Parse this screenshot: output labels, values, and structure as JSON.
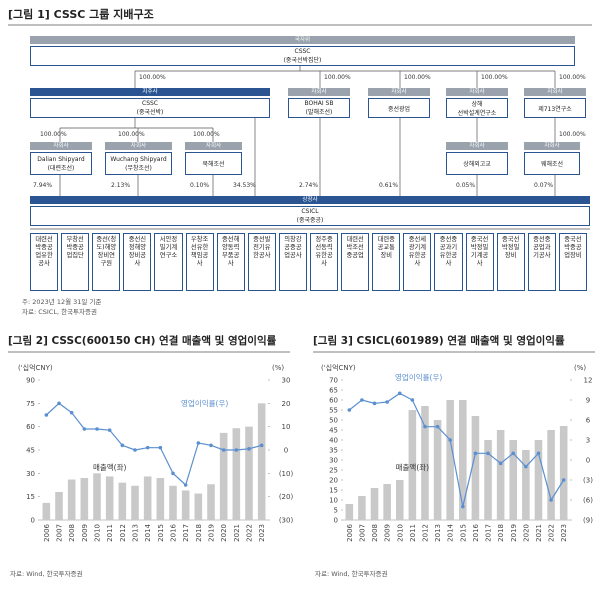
{
  "diagram": {
    "title": "[그림 1] CSSC 그룹 지배구조",
    "nodes": [
      {
        "tag": "국자위",
        "lines": [
          "CSSC",
          "(중국선박집단)"
        ]
      },
      {
        "tag": "지주사",
        "lines": [
          "CSSC",
          "(중국선박)"
        ]
      },
      {
        "tag": "자회사",
        "lines": [
          "BOHAI SB",
          "(발해조선)"
        ]
      },
      {
        "tag": "자회사",
        "lines": [
          "중선광업"
        ]
      },
      {
        "tag": "자회사",
        "lines": [
          "상해",
          "선박설계연구소"
        ]
      },
      {
        "tag": "자회사",
        "lines": [
          "제713연구소"
        ]
      },
      {
        "tag": "자회사",
        "lines": [
          "Dalian Shipyard",
          "(대련조선)"
        ]
      },
      {
        "tag": "자회사",
        "lines": [
          "Wuchang Shipyard",
          "(무창조선)"
        ]
      },
      {
        "tag": "자회사",
        "lines": [
          "북해조선"
        ]
      },
      {
        "tag": "자회사",
        "lines": [
          "상해외고교"
        ]
      },
      {
        "tag": "자회사",
        "lines": [
          "웨해조선"
        ]
      },
      {
        "tag": "상장사",
        "lines": [
          "CSICL",
          "(중국중공)"
        ]
      }
    ],
    "edges": [
      "100.00%",
      "100.00%",
      "100.00%",
      "100.00%",
      "100.00%",
      "100.00%",
      "100.00%",
      "100.00%",
      "100.00%",
      "7.94%",
      "2.13%",
      "0.10%",
      "34.53%",
      "2.74%",
      "0.61%",
      "0.05%",
      "0.07%"
    ],
    "subsidiaries": [
      "대련선박중공업유한공사",
      "무창선박중공업집단",
      "중선(청도)해양장비연구원",
      "중선신정해양장비공사",
      "서안정밀기계연구소",
      "우창조선유한책임공사",
      "중선해양동력부품공사",
      "중선발전기유한공사",
      "의창강공중공업공사",
      "정주중선동력유한공사",
      "대련선박조선중공업",
      "대련중공교통장비",
      "중선세광기계유한공사",
      "중선중공과기유한공사",
      "중국선박정밀기계공사",
      "중국선박정밀장비",
      "중선중공업과기공사",
      "중국선박중공업장비"
    ],
    "note": "주: 2023년 12월 31일 기준",
    "source": "자료: CSICL, 한국투자증권"
  },
  "chart_data": [
    {
      "type": "bar",
      "title": "[그림 2] CSSC(600150 CH) 연결 매출액 및 영업이익률",
      "y_label": "('십억CNY)",
      "y2_label": "(%)",
      "categories": [
        "2006",
        "2007",
        "2008",
        "2009",
        "2010",
        "2011",
        "2012",
        "2013",
        "2014",
        "2015",
        "2016",
        "2017",
        "2018",
        "2019",
        "2020",
        "2021",
        "2022",
        "2023"
      ],
      "series": [
        {
          "name": "매출액(좌)",
          "type": "bar",
          "color": "#c9c9c9",
          "values": [
            11,
            18,
            26,
            27,
            30,
            28,
            24,
            22,
            28,
            27,
            22,
            19,
            17,
            23,
            56,
            59,
            60,
            75
          ]
        },
        {
          "name": "영업이익률(우)",
          "type": "line",
          "axis": "y2",
          "color": "#5b8fd0",
          "values": [
            15,
            20,
            16,
            9,
            9,
            8.5,
            2,
            0,
            1,
            1,
            -10,
            -15,
            3,
            2,
            0,
            0,
            0.5,
            2
          ]
        }
      ],
      "ylim": [
        0,
        90
      ],
      "yticks": [
        0,
        15,
        30,
        45,
        60,
        75,
        90
      ],
      "y2lim": [
        -30,
        30
      ],
      "y2ticks": [
        {
          "value": -30,
          "label": "(30)"
        },
        {
          "value": -20,
          "label": "(20)"
        },
        {
          "value": -10,
          "label": "(10)"
        },
        0,
        10,
        20,
        30
      ],
      "source": "자료: Wind, 한국투자증권"
    },
    {
      "type": "bar",
      "title": "[그림 3] CSICL(601989) 연결 매출액 및 영업이익률",
      "y_label": "('십억CNY)",
      "y2_label": "(%)",
      "categories": [
        "2006",
        "2007",
        "2008",
        "2009",
        "2010",
        "2011",
        "2012",
        "2013",
        "2014",
        "2015",
        "2016",
        "2017",
        "2018",
        "2019",
        "2020",
        "2021",
        "2022",
        "2023"
      ],
      "series": [
        {
          "name": "매출액(좌)",
          "type": "bar",
          "color": "#c9c9c9",
          "values": [
            8,
            12,
            16,
            18,
            20,
            55,
            57,
            50,
            60,
            60,
            52,
            40,
            45,
            40,
            35,
            40,
            45,
            47
          ]
        },
        {
          "name": "영업이익률(우)",
          "type": "line",
          "axis": "y2",
          "color": "#5b8fd0",
          "values": [
            7.5,
            9,
            8.5,
            8.7,
            10,
            9,
            5,
            5,
            3,
            -7,
            1,
            1,
            -0.5,
            1,
            -1,
            1,
            -6,
            -3
          ]
        }
      ],
      "ylim": [
        0,
        70
      ],
      "yticks": [
        0,
        5,
        10,
        15,
        20,
        25,
        30,
        35,
        40,
        45,
        50,
        55,
        60,
        65,
        70
      ],
      "y2lim": [
        -9,
        12
      ],
      "y2ticks": [
        {
          "value": -9,
          "label": "(9)"
        },
        {
          "value": -6,
          "label": "(6)"
        },
        {
          "value": -3,
          "label": "(3)"
        },
        0,
        3,
        6,
        9,
        12
      ],
      "source": "자료: Wind, 한국투자증권"
    }
  ]
}
